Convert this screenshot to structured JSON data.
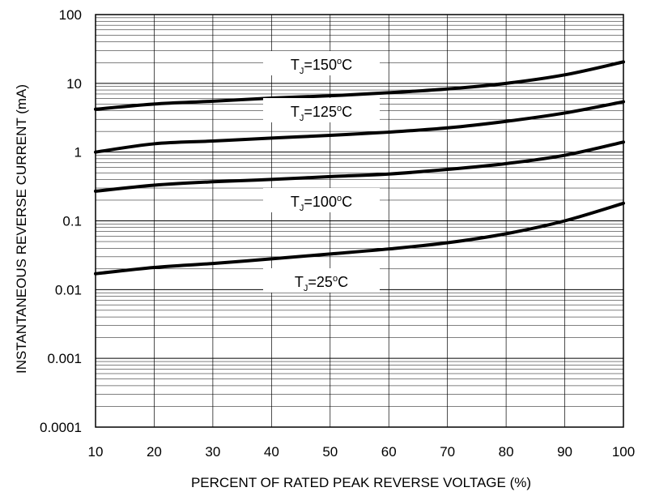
{
  "chart_data": {
    "type": "line",
    "title": "",
    "xlabel": "PERCENT OF RATED PEAK REVERSE VOLTAGE (%)",
    "ylabel": "INSTANTANEOUS REVERSE CURRENT (mA)",
    "xlim": [
      10,
      100
    ],
    "ylim": [
      0.0001,
      100
    ],
    "yscale": "log",
    "grid": true,
    "x_ticks": [
      "10",
      "20",
      "30",
      "40",
      "50",
      "60",
      "70",
      "80",
      "90",
      "100"
    ],
    "y_ticks": [
      "0.0001",
      "0.001",
      "0.01",
      "0.1",
      "1",
      "10",
      "100"
    ],
    "series": [
      {
        "name": "T_J=150°C",
        "label_parts": {
          "main": "T",
          "sub": "J",
          "mid": "=150",
          "sup": "o",
          "end": "C"
        },
        "x": [
          10,
          20,
          30,
          40,
          50,
          60,
          70,
          80,
          90,
          100
        ],
        "y": [
          4.2,
          5.0,
          5.5,
          6.1,
          6.6,
          7.3,
          8.3,
          10.0,
          13.3,
          20.5
        ]
      },
      {
        "name": "T_J=125°C",
        "label_parts": {
          "main": "T",
          "sub": "J",
          "mid": "=125",
          "sup": "o",
          "end": "C"
        },
        "x": [
          10,
          20,
          30,
          40,
          50,
          60,
          70,
          80,
          90,
          100
        ],
        "y": [
          1.0,
          1.32,
          1.45,
          1.6,
          1.75,
          1.95,
          2.25,
          2.8,
          3.7,
          5.4
        ]
      },
      {
        "name": "T_J=100°C",
        "label_parts": {
          "main": "T",
          "sub": "J",
          "mid": "=100",
          "sup": "o",
          "end": "C"
        },
        "x": [
          10,
          20,
          30,
          40,
          50,
          60,
          70,
          80,
          90,
          100
        ],
        "y": [
          0.27,
          0.33,
          0.37,
          0.4,
          0.44,
          0.48,
          0.56,
          0.68,
          0.9,
          1.4
        ]
      },
      {
        "name": "T_J=25°C",
        "label_parts": {
          "main": "T",
          "sub": "J",
          "mid": "=25",
          "sup": "o",
          "end": "C"
        },
        "x": [
          10,
          20,
          30,
          40,
          50,
          60,
          70,
          80,
          90,
          100
        ],
        "y": [
          0.017,
          0.021,
          0.024,
          0.028,
          0.033,
          0.039,
          0.048,
          0.065,
          0.1,
          0.18
        ]
      }
    ]
  }
}
